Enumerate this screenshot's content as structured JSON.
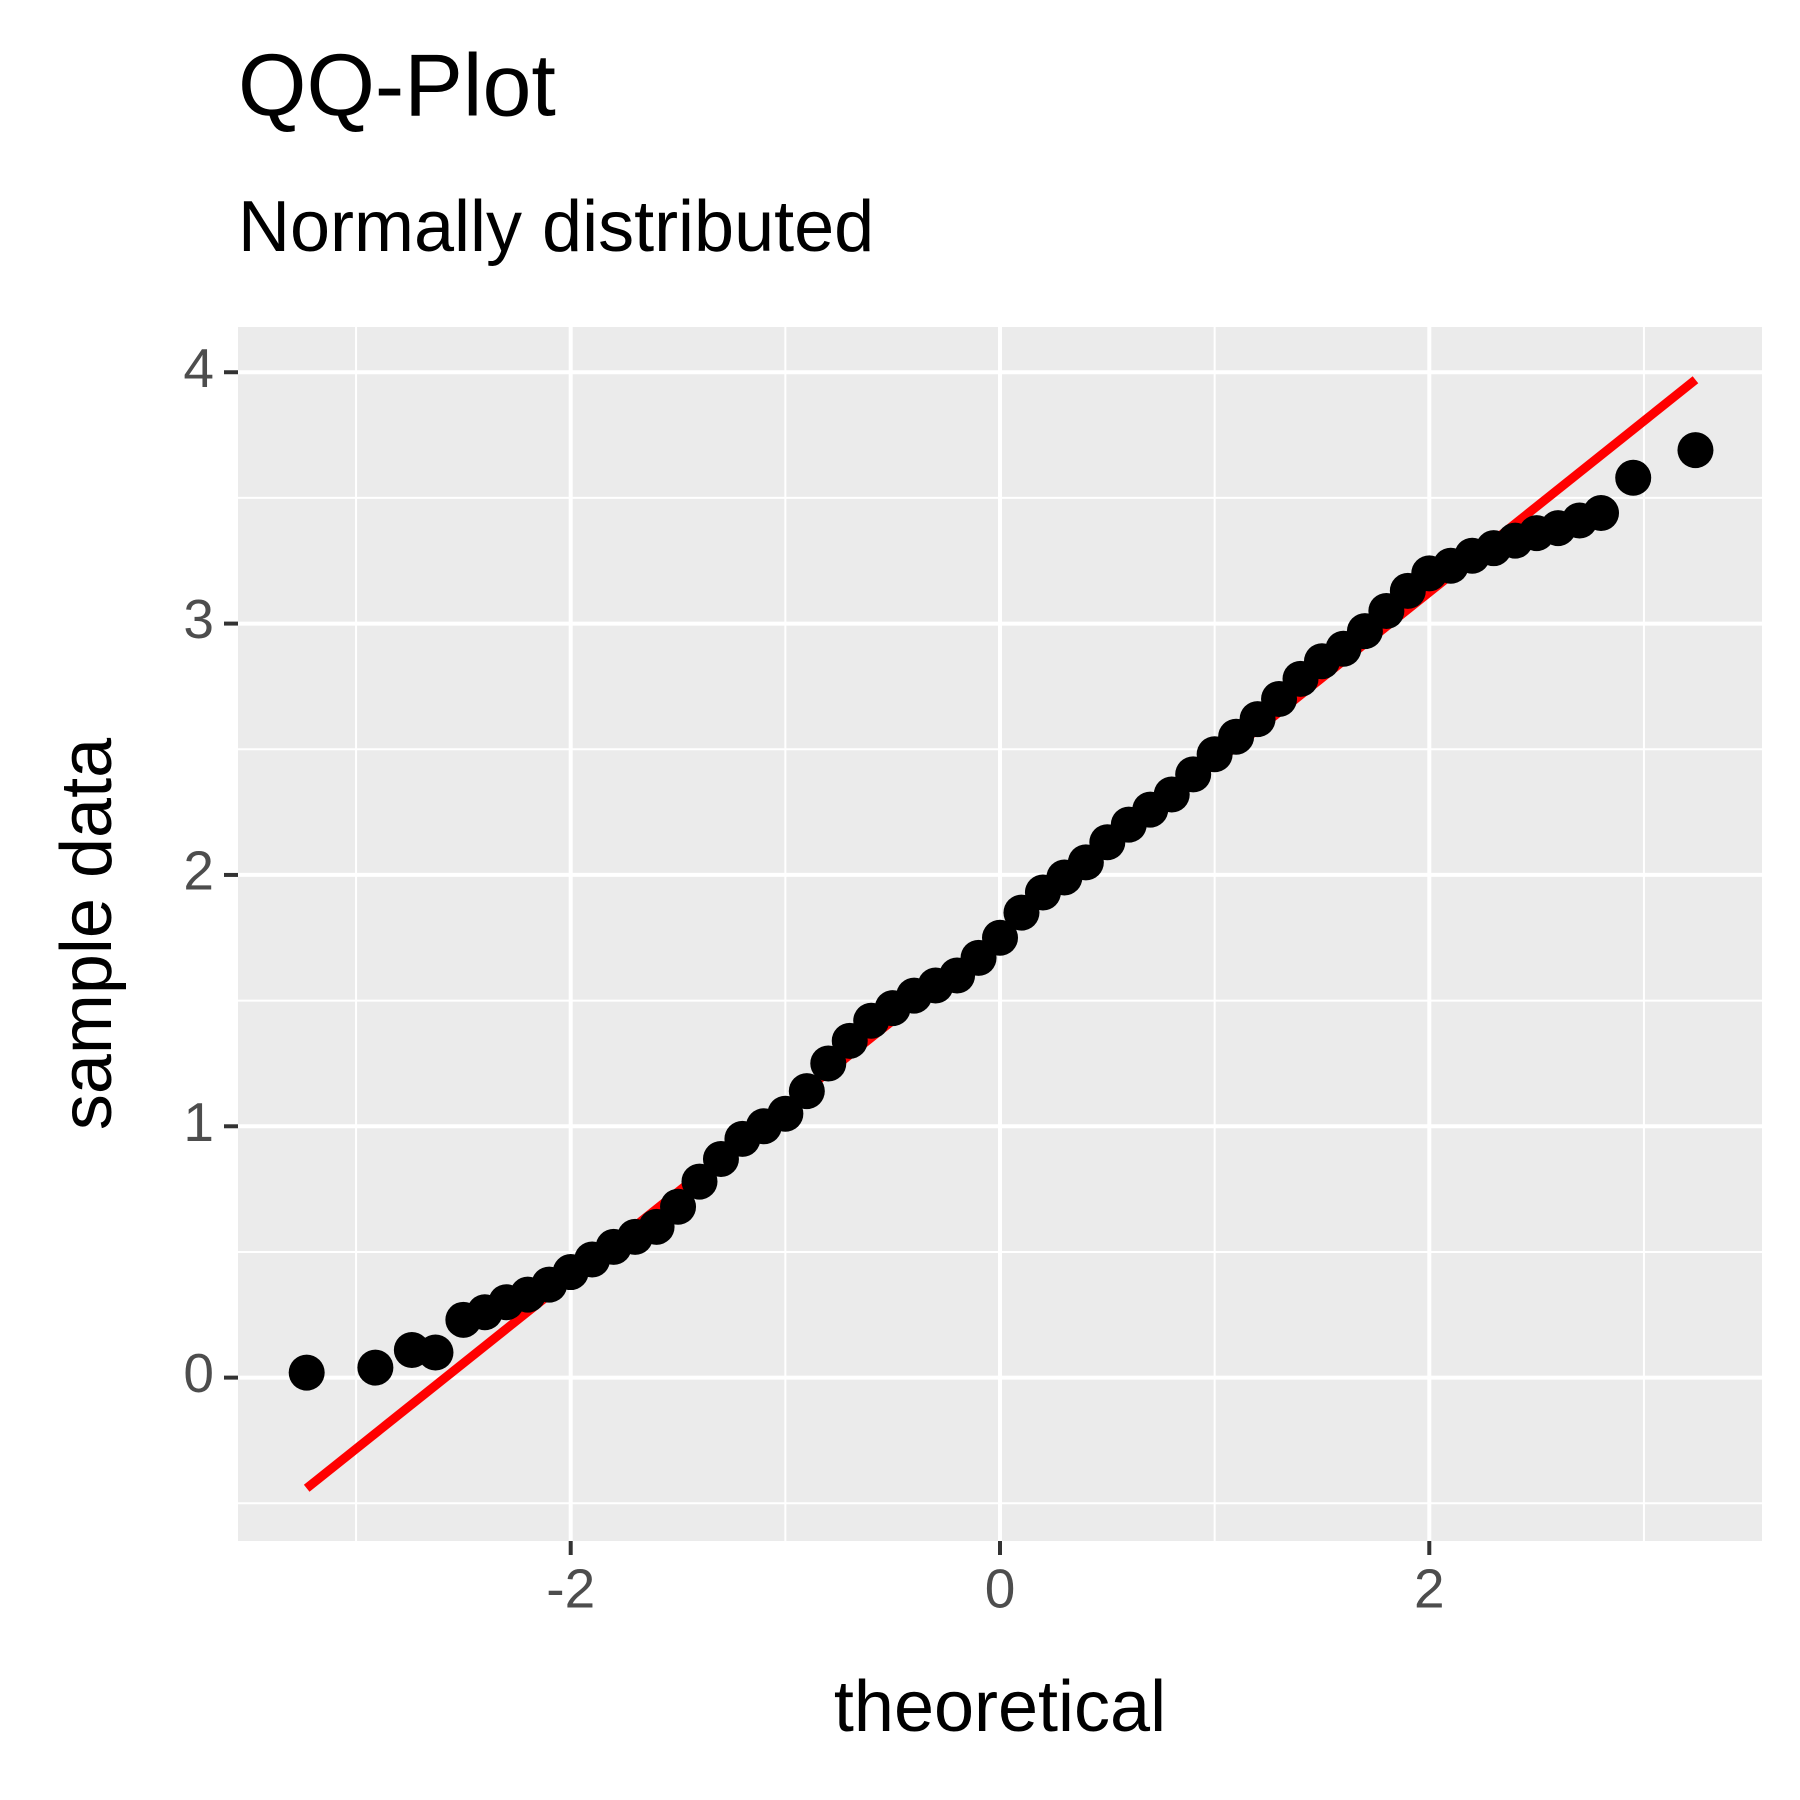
{
  "chart_data": {
    "type": "scatter",
    "title": "QQ-Plot",
    "subtitle": "Normally distributed",
    "x_label": "theoretical",
    "y_label": "sample data",
    "xlim": [
      -3.55,
      3.55
    ],
    "ylim": [
      -0.65,
      4.18
    ],
    "xticks": [
      -2,
      0,
      2
    ],
    "yticks": [
      0,
      1,
      2,
      3,
      4
    ],
    "minor_xticks": [
      -3,
      -1,
      1,
      3
    ],
    "minor_yticks": [
      -0.5,
      0.5,
      1.5,
      2.5,
      3.5
    ],
    "grid": true,
    "series": [
      {
        "color": "#000000",
        "x": [
          -3.23,
          -2.91,
          -2.74,
          -2.63,
          -2.5,
          -2.4,
          -2.3,
          -2.2,
          -2.1,
          -2.0,
          -1.9,
          -1.8,
          -1.7,
          -1.6,
          -1.5,
          -1.4,
          -1.3,
          -1.2,
          -1.1,
          -1.0,
          -0.9,
          -0.8,
          -0.7,
          -0.6,
          -0.5,
          -0.4,
          -0.3,
          -0.2,
          -0.1,
          0,
          0.1,
          0.2,
          0.3,
          0.4,
          0.5,
          0.6,
          0.7,
          0.8,
          0.9,
          1.0,
          1.1,
          1.2,
          1.3,
          1.4,
          1.5,
          1.6,
          1.7,
          1.8,
          1.9,
          2.0,
          2.1,
          2.2,
          2.3,
          2.4,
          2.5,
          2.6,
          2.7,
          2.8,
          2.95,
          3.24
        ],
        "values": [
          0.02,
          0.04,
          0.11,
          0.1,
          0.23,
          0.26,
          0.3,
          0.33,
          0.37,
          0.42,
          0.47,
          0.52,
          0.56,
          0.6,
          0.68,
          0.78,
          0.87,
          0.95,
          1.0,
          1.05,
          1.14,
          1.25,
          1.34,
          1.42,
          1.47,
          1.52,
          1.56,
          1.6,
          1.67,
          1.75,
          1.85,
          1.93,
          1.99,
          2.05,
          2.13,
          2.2,
          2.26,
          2.32,
          2.4,
          2.48,
          2.55,
          2.62,
          2.7,
          2.78,
          2.85,
          2.9,
          2.97,
          3.05,
          3.13,
          3.2,
          3.23,
          3.27,
          3.3,
          3.33,
          3.36,
          3.38,
          3.41,
          3.44,
          3.58,
          3.69
        ]
      }
    ],
    "reference_line": {
      "color": "#ff0000",
      "x": [
        -3.23,
        3.24
      ],
      "values": [
        -0.44,
        3.97
      ]
    }
  }
}
